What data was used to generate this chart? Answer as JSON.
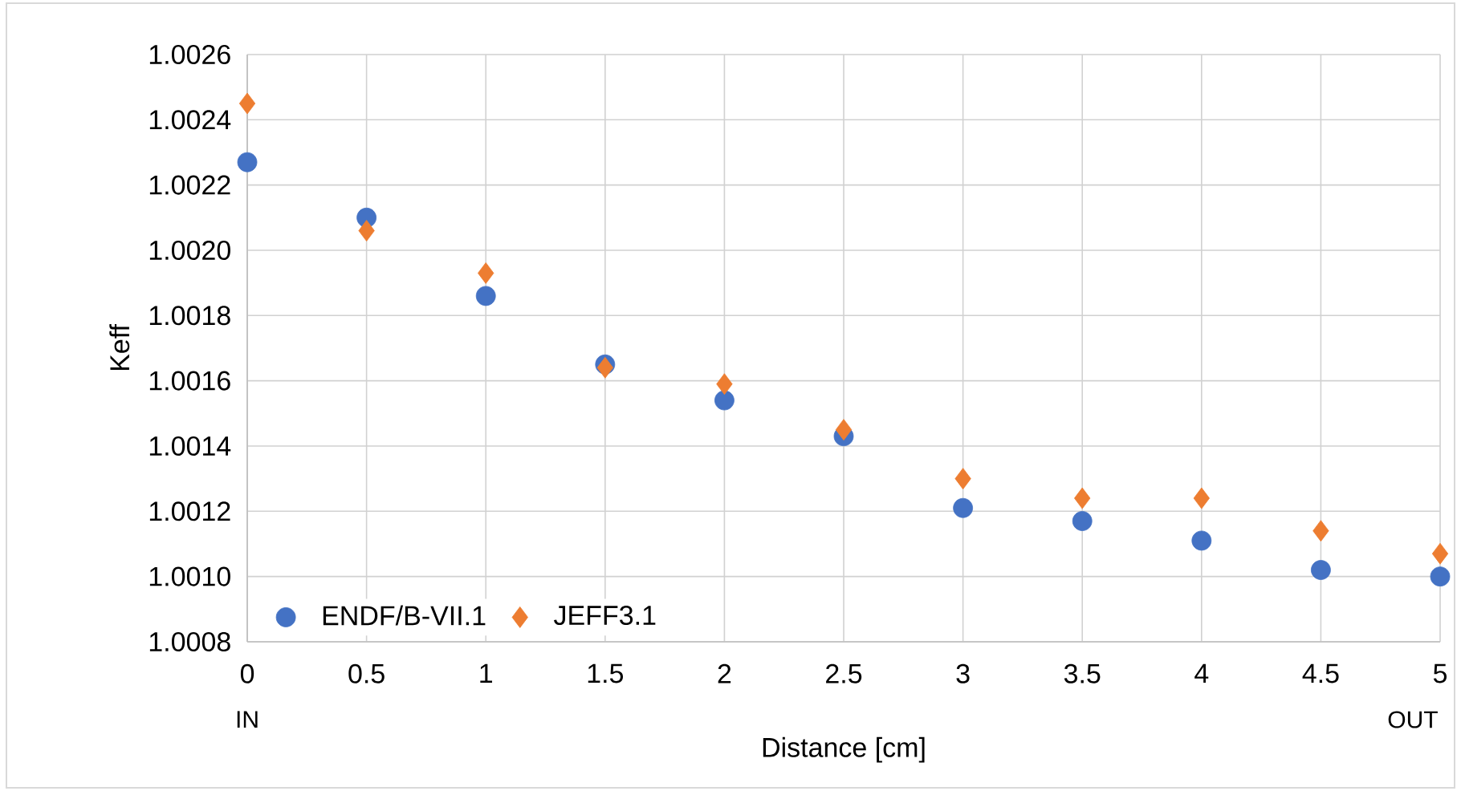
{
  "chart_data": {
    "type": "scatter",
    "xlabel": "Distance [cm]",
    "ylabel": "Keff",
    "x": [
      0,
      0.5,
      1,
      1.5,
      2,
      2.5,
      3,
      3.5,
      4,
      4.5,
      5
    ],
    "series": [
      {
        "name": "ENDF/B-VII.1",
        "color": "#4472c4",
        "marker": "circle",
        "values": [
          1.00227,
          1.0021,
          1.00186,
          1.00165,
          1.00154,
          1.00143,
          1.00121,
          1.00117,
          1.00111,
          1.00102,
          1.001
        ]
      },
      {
        "name": "JEFF3.1",
        "color": "#ed7d31",
        "marker": "diamond",
        "values": [
          1.00245,
          1.00206,
          1.00193,
          1.00164,
          1.00159,
          1.00145,
          1.0013,
          1.00124,
          1.00124,
          1.00114,
          1.00107
        ]
      }
    ],
    "xlim": [
      0,
      5
    ],
    "xticks": [
      0,
      0.5,
      1,
      1.5,
      2,
      2.5,
      3,
      3.5,
      4,
      4.5,
      5
    ],
    "ylim": [
      1.0008,
      1.0026
    ],
    "yticks": [
      {
        "value": 1.0008,
        "label": "1.0008"
      },
      {
        "value": 1.001,
        "label": "1.0010"
      },
      {
        "value": 1.0012,
        "label": "1.0012"
      },
      {
        "value": 1.0014,
        "label": "1.0014"
      },
      {
        "value": 1.0016,
        "label": "1.0016"
      },
      {
        "value": 1.0018,
        "label": "1.0018"
      },
      {
        "value": 1.002,
        "label": "1.0020"
      },
      {
        "value": 1.0022,
        "label": "1.0022"
      },
      {
        "value": 1.0024,
        "label": "1.0024"
      },
      {
        "value": 1.0026,
        "label": "1.0026"
      }
    ],
    "grid": true,
    "legend": "bottom left",
    "annotations": [
      "IN",
      "OUT"
    ]
  }
}
